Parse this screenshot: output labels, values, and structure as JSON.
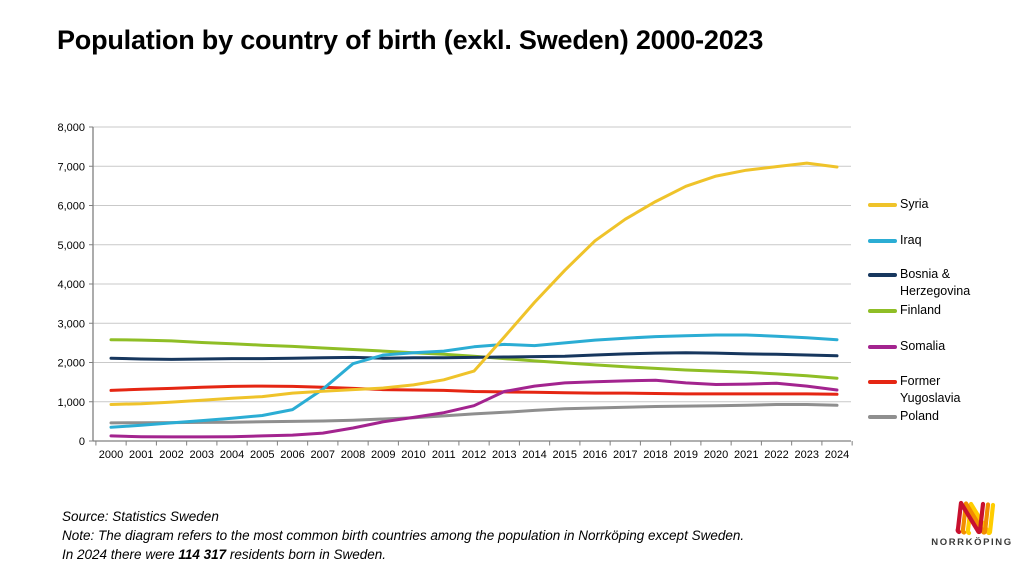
{
  "title": "Population by country of birth (exkl. Sweden) 2000-2023",
  "chart_data": {
    "type": "line",
    "categories": [
      "2000",
      "2001",
      "2002",
      "2003",
      "2004",
      "2005",
      "2006",
      "2007",
      "2008",
      "2009",
      "2010",
      "2011",
      "2012",
      "2013",
      "2014",
      "2015",
      "2016",
      "2017",
      "2018",
      "2019",
      "2020",
      "2021",
      "2022",
      "2023",
      "2024"
    ],
    "series": [
      {
        "name": "Syria",
        "color": "#EFC32A",
        "values": [
          930,
          950,
          990,
          1040,
          1090,
          1130,
          1220,
          1270,
          1310,
          1350,
          1430,
          1560,
          1780,
          2650,
          3530,
          4350,
          5100,
          5650,
          6100,
          6490,
          6750,
          6900,
          6990,
          7080,
          6980
        ]
      },
      {
        "name": "Iraq",
        "color": "#2BADD4",
        "values": [
          350,
          400,
          460,
          520,
          580,
          650,
          800,
          1320,
          1970,
          2190,
          2250,
          2290,
          2400,
          2460,
          2430,
          2500,
          2570,
          2620,
          2660,
          2680,
          2700,
          2700,
          2670,
          2630,
          2580
        ]
      },
      {
        "name": "Bosnia & Herzegovina",
        "color": "#17375E",
        "values": [
          2110,
          2090,
          2080,
          2090,
          2100,
          2100,
          2110,
          2120,
          2130,
          2110,
          2120,
          2120,
          2130,
          2140,
          2150,
          2160,
          2190,
          2220,
          2240,
          2250,
          2240,
          2220,
          2210,
          2190,
          2170
        ]
      },
      {
        "name": "Finland",
        "color": "#8FBE26",
        "values": [
          2580,
          2570,
          2550,
          2510,
          2480,
          2440,
          2410,
          2370,
          2330,
          2290,
          2250,
          2210,
          2160,
          2100,
          2040,
          1990,
          1940,
          1890,
          1850,
          1810,
          1780,
          1750,
          1710,
          1660,
          1600
        ]
      },
      {
        "name": "Somalia",
        "color": "#A3248F",
        "values": [
          130,
          110,
          105,
          105,
          110,
          130,
          150,
          200,
          330,
          490,
          600,
          720,
          900,
          1260,
          1400,
          1480,
          1510,
          1530,
          1550,
          1480,
          1440,
          1450,
          1470,
          1400,
          1300
        ]
      },
      {
        "name": "Former Yugoslavia",
        "color": "#E52613",
        "values": [
          1290,
          1320,
          1340,
          1370,
          1390,
          1400,
          1390,
          1370,
          1340,
          1310,
          1300,
          1290,
          1260,
          1250,
          1240,
          1230,
          1220,
          1220,
          1210,
          1200,
          1200,
          1200,
          1200,
          1200,
          1190
        ]
      },
      {
        "name": "Poland",
        "color": "#8F8F8F",
        "values": [
          460,
          465,
          470,
          475,
          480,
          490,
          500,
          510,
          530,
          560,
          590,
          640,
          690,
          730,
          780,
          820,
          840,
          860,
          880,
          890,
          900,
          910,
          930,
          930,
          910
        ]
      }
    ],
    "title": "Population by country of birth (exkl. Sweden) 2000-2023",
    "xlabel": "",
    "ylabel": "",
    "ylim": [
      0,
      8000
    ],
    "y_tick_step": 1000,
    "y_tick_labels": [
      "0",
      "1,000",
      "2,000",
      "3,000",
      "4,000",
      "5,000",
      "6,000",
      "7,000",
      "8,000"
    ],
    "grid": "horizontal",
    "legend_position": "right"
  },
  "footer": {
    "source": "Source: Statistics Sweden",
    "note": "Note: The diagram refers to the most common birth countries among the population in Norrköping except Sweden.",
    "note2_prefix": "In 2024 there were ",
    "note2_bold": "114 317",
    "note2_suffix": " residents born in Sweden."
  },
  "logo": {
    "wordmark": "NORRKÖPING",
    "colors": {
      "red": "#C8102E",
      "orange": "#F28C00",
      "yellow": "#FFCD00"
    }
  }
}
